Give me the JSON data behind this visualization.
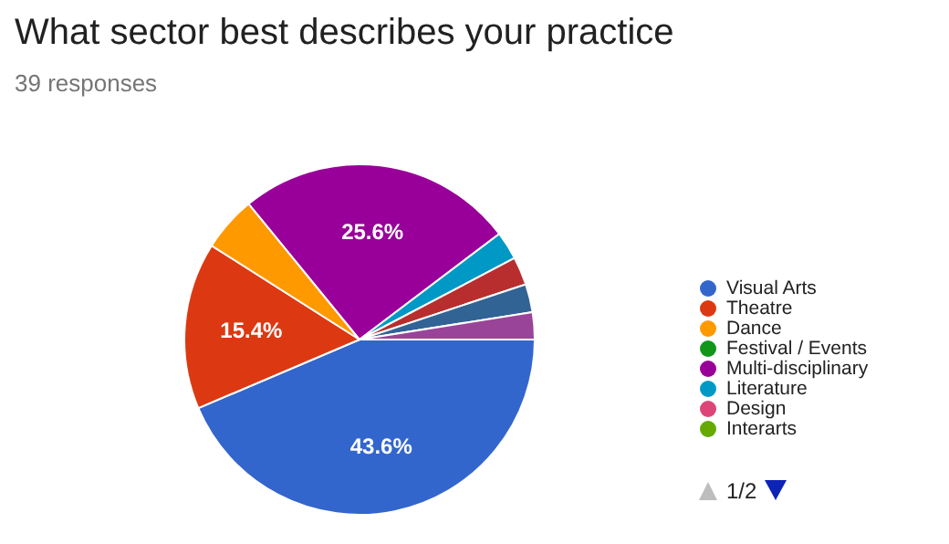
{
  "chart_data": {
    "type": "pie",
    "title": "What sector best describes your practice",
    "subtitle": "39 responses",
    "categories": [
      "Visual Arts",
      "Theatre",
      "Dance",
      "Festival / Events",
      "Multi-disciplinary",
      "Literature",
      "Design",
      "Interarts",
      null,
      null,
      null
    ],
    "values": [
      43.6,
      15.4,
      5.1,
      0,
      25.6,
      2.6,
      0,
      0,
      2.6,
      2.6,
      2.5
    ],
    "colors": [
      "#3366cc",
      "#dc3912",
      "#ff9900",
      "#109618",
      "#990099",
      "#0099c6",
      "#dd4477",
      "#66aa00",
      "#b82e2e",
      "#316395",
      "#994499"
    ],
    "value_labels": [
      "43.6%",
      "15.4%",
      null,
      null,
      "25.6%",
      null,
      null,
      null,
      null,
      null,
      null
    ],
    "legend": "right",
    "annotations": [
      "1/2"
    ]
  }
}
